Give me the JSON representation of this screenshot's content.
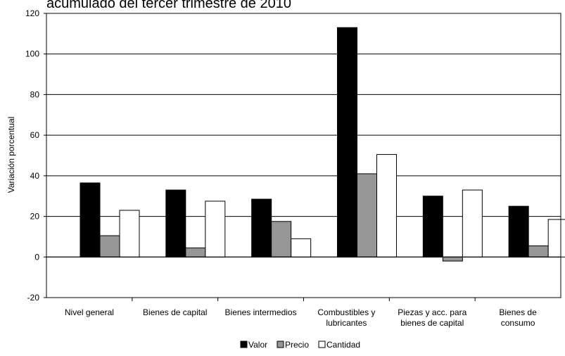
{
  "chart_data": {
    "type": "bar",
    "title": "acumulado del tercer trimestre de 2010",
    "ylabel": "Variación porcentual",
    "xlabel": "",
    "ylim": [
      -20,
      120
    ],
    "yticks": [
      -20,
      0,
      20,
      40,
      60,
      80,
      100,
      120
    ],
    "grid": true,
    "legend_position": "bottom",
    "categories": [
      [
        "Nivel general"
      ],
      [
        "Bienes de capital"
      ],
      [
        "Bienes intermedios"
      ],
      [
        "Combustibles y",
        "lubricantes"
      ],
      [
        "Piezas y acc. para",
        "bienes de capital"
      ],
      [
        "Bienes de",
        "consumo"
      ]
    ],
    "series": [
      {
        "name": "Valor",
        "color": "#000000",
        "values": [
          36.5,
          33,
          28.5,
          113,
          30,
          25
        ]
      },
      {
        "name": "Precio",
        "color": "#969696",
        "values": [
          10.5,
          4.5,
          17.5,
          41,
          -2,
          5.5
        ]
      },
      {
        "name": "Cantidad",
        "color": "#ffffff",
        "values": [
          23,
          27.5,
          9,
          50.5,
          33,
          18.5
        ]
      }
    ]
  }
}
